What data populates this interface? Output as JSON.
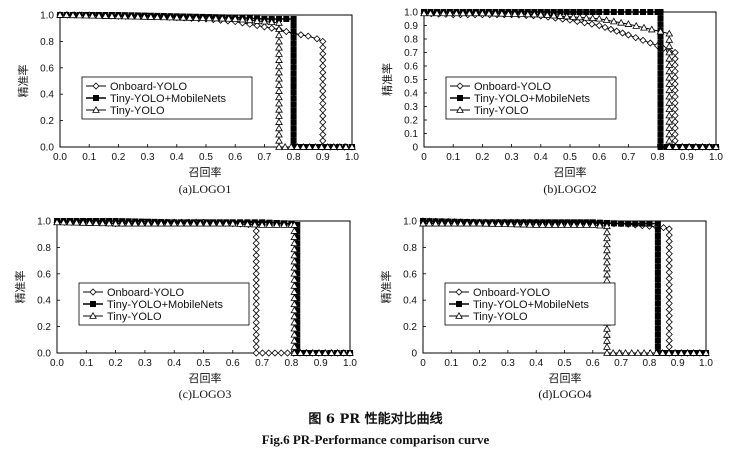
{
  "figure_caption_cn": "图 6    PR 性能对比曲线",
  "figure_caption_en": "Fig.6    PR-Performance comparison curve",
  "chart_data": [
    {
      "type": "line",
      "caption": "(a)LOGO1",
      "xlabel": "召回率",
      "ylabel": "精准率",
      "xlim": [
        0,
        1.0
      ],
      "ylim": [
        0,
        1.0
      ],
      "xticks": [
        "0.0",
        "0.1",
        "0.2",
        "0.3",
        "0.4",
        "0.5",
        "0.6",
        "0.7",
        "0.8",
        "0.9",
        "1.0"
      ],
      "yticks": [
        "0.0",
        "0.2",
        "0.4",
        "0.6",
        "0.8",
        "1.0"
      ],
      "legend_position": "lower-left",
      "series": [
        {
          "name": "Onboard-YOLO",
          "marker": "diamond",
          "x": [
            0,
            0.1,
            0.2,
            0.3,
            0.4,
            0.5,
            0.6,
            0.7,
            0.75,
            0.8,
            0.85,
            0.88,
            0.9,
            0.9,
            1.0
          ],
          "y": [
            1.0,
            1.0,
            0.99,
            0.99,
            0.98,
            0.97,
            0.95,
            0.91,
            0.89,
            0.86,
            0.84,
            0.82,
            0.8,
            0.0,
            0.0
          ]
        },
        {
          "name": "Tiny-YOLO+MobileNets",
          "marker": "square",
          "x": [
            0,
            0.2,
            0.4,
            0.6,
            0.7,
            0.75,
            0.8,
            0.8,
            1.0
          ],
          "y": [
            1.0,
            1.0,
            0.99,
            0.98,
            0.97,
            0.97,
            0.97,
            0.0,
            0.0
          ]
        },
        {
          "name": "Tiny-YOLO",
          "marker": "triangle",
          "x": [
            0,
            0.2,
            0.4,
            0.6,
            0.7,
            0.75,
            0.75,
            1.0
          ],
          "y": [
            1.0,
            0.99,
            0.98,
            0.97,
            0.95,
            0.94,
            0.0,
            0.0
          ]
        }
      ]
    },
    {
      "type": "line",
      "caption": "(b)LOGO2",
      "xlabel": "召回率",
      "ylabel": "精准率",
      "xlim": [
        0,
        1.0
      ],
      "ylim": [
        0,
        1.0
      ],
      "xticks": [
        "0",
        "0.1",
        "0.2",
        "0.3",
        "0.4",
        "0.5",
        "0.6",
        "0.7",
        "0.8",
        "0.9",
        "1.0"
      ],
      "yticks": [
        "0",
        "0.1",
        "0.2",
        "0.3",
        "0.4",
        "0.5",
        "0.6",
        "0.7",
        "0.8",
        "0.9",
        "1.0"
      ],
      "legend_position": "lower-left",
      "series": [
        {
          "name": "Onboard-YOLO",
          "marker": "diamond",
          "x": [
            0,
            0.1,
            0.2,
            0.3,
            0.4,
            0.5,
            0.6,
            0.7,
            0.75,
            0.8,
            0.84,
            0.86,
            0.86,
            1.0
          ],
          "y": [
            0.99,
            0.98,
            0.98,
            0.98,
            0.97,
            0.94,
            0.9,
            0.83,
            0.79,
            0.75,
            0.71,
            0.7,
            0.0,
            0.0
          ]
        },
        {
          "name": "Tiny-YOLO+MobileNets",
          "marker": "square",
          "x": [
            0,
            0.2,
            0.4,
            0.6,
            0.7,
            0.8,
            0.81,
            0.81,
            1.0
          ],
          "y": [
            1.0,
            1.0,
            1.0,
            1.0,
            1.0,
            1.0,
            1.0,
            0.0,
            0.0
          ]
        },
        {
          "name": "Tiny-YOLO",
          "marker": "triangle",
          "x": [
            0,
            0.2,
            0.4,
            0.6,
            0.7,
            0.78,
            0.84,
            0.84,
            1.0
          ],
          "y": [
            0.99,
            0.99,
            0.98,
            0.95,
            0.91,
            0.87,
            0.84,
            0.0,
            0.0
          ]
        }
      ]
    },
    {
      "type": "line",
      "caption": "(c)LOGO3",
      "xlabel": "召回率",
      "ylabel": "精准率",
      "xlim": [
        0,
        1.0
      ],
      "ylim": [
        0,
        1.0
      ],
      "xticks": [
        "0.0",
        "0.1",
        "0.2",
        "0.3",
        "0.4",
        "0.5",
        "0.6",
        "0.7",
        "0.8",
        "0.9",
        "1.0"
      ],
      "yticks": [
        "0.0",
        "0.2",
        "0.4",
        "0.6",
        "0.8",
        "1.0"
      ],
      "legend_position": "lower-left",
      "series": [
        {
          "name": "Onboard-YOLO",
          "marker": "diamond",
          "x": [
            0,
            0.1,
            0.2,
            0.3,
            0.4,
            0.5,
            0.6,
            0.68,
            0.68,
            1.0
          ],
          "y": [
            0.99,
            0.99,
            0.98,
            0.99,
            0.99,
            0.99,
            0.98,
            0.97,
            0.0,
            0.0
          ]
        },
        {
          "name": "Tiny-YOLO+MobileNets",
          "marker": "square",
          "x": [
            0,
            0.2,
            0.4,
            0.6,
            0.7,
            0.8,
            0.82,
            0.82,
            1.0
          ],
          "y": [
            1.0,
            1.0,
            0.99,
            0.99,
            0.99,
            0.98,
            0.97,
            0.0,
            0.0
          ]
        },
        {
          "name": "Tiny-YOLO",
          "marker": "triangle",
          "x": [
            0,
            0.2,
            0.4,
            0.6,
            0.7,
            0.8,
            0.81,
            0.81,
            1.0
          ],
          "y": [
            0.99,
            0.98,
            0.98,
            0.98,
            0.97,
            0.97,
            0.97,
            0.0,
            0.0
          ]
        }
      ]
    },
    {
      "type": "line",
      "caption": "(d)LOGO4",
      "xlabel": "召回率",
      "ylabel": "精准率",
      "xlim": [
        0,
        1.0
      ],
      "ylim": [
        0,
        1.0
      ],
      "xticks": [
        "0",
        "0.1",
        "0.2",
        "0.3",
        "0.4",
        "0.5",
        "0.6",
        "0.7",
        "0.8",
        "0.9",
        "1.0"
      ],
      "yticks": [
        "0",
        "0.2",
        "0.4",
        "0.6",
        "0.8",
        "1.0"
      ],
      "legend_position": "lower-left",
      "series": [
        {
          "name": "Onboard-YOLO",
          "marker": "diamond",
          "x": [
            0,
            0.2,
            0.4,
            0.6,
            0.7,
            0.8,
            0.85,
            0.87,
            0.87,
            1.0
          ],
          "y": [
            1.0,
            0.99,
            0.99,
            0.98,
            0.98,
            0.96,
            0.95,
            0.94,
            0.0,
            0.0
          ]
        },
        {
          "name": "Tiny-YOLO+MobileNets",
          "marker": "square",
          "x": [
            0,
            0.2,
            0.4,
            0.6,
            0.7,
            0.8,
            0.83,
            0.83,
            1.0
          ],
          "y": [
            1.0,
            0.99,
            0.99,
            0.99,
            0.98,
            0.98,
            0.98,
            0.0,
            0.0
          ]
        },
        {
          "name": "Tiny-YOLO",
          "marker": "triangle",
          "x": [
            0,
            0.2,
            0.4,
            0.6,
            0.65,
            0.65,
            1.0
          ],
          "y": [
            0.98,
            0.98,
            0.97,
            0.97,
            0.96,
            0.0,
            0.0
          ]
        }
      ]
    }
  ]
}
